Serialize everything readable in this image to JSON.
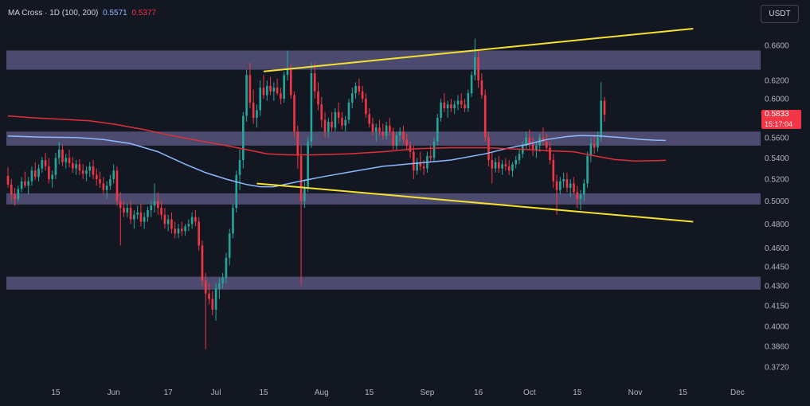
{
  "legend": {
    "title": "MA Cross · 1D (100, 200)",
    "ma100_value": "0.5571",
    "ma200_value": "0.5377"
  },
  "currency_button": "USDT",
  "last_price": {
    "value": "0.5833",
    "countdown": "15:17:04"
  },
  "colors": {
    "background": "#131722",
    "up": "#26a69a",
    "down": "#f23645",
    "ma100": "#8fb9ff",
    "ma200": "#e0303a",
    "trendline": "#f5e12e",
    "zone": "#6f6a9c"
  },
  "chart_data": {
    "type": "candlestick",
    "symbol_indicator": "MA Cross (100, 200)",
    "timeframe": "1D",
    "y_axis": {
      "scale": "log",
      "ticks": [
        "0.6600",
        "0.6200",
        "0.6000",
        "0.5600",
        "0.5400",
        "0.5200",
        "0.5000",
        "0.4800",
        "0.4600",
        "0.4450",
        "0.4300",
        "0.4150",
        "0.4000",
        "0.3860",
        "0.3720"
      ],
      "range": [
        0.362,
        0.69
      ]
    },
    "x_axis": {
      "ticks": [
        {
          "label": "15",
          "day": 14
        },
        {
          "label": "Jun",
          "day": 31
        },
        {
          "label": "17",
          "day": 47
        },
        {
          "label": "Jul",
          "day": 61
        },
        {
          "label": "15",
          "day": 75
        },
        {
          "label": "Aug",
          "day": 92
        },
        {
          "label": "15",
          "day": 106
        },
        {
          "label": "Sep",
          "day": 123
        },
        {
          "label": "16",
          "day": 138
        },
        {
          "label": "Oct",
          "day": 153
        },
        {
          "label": "15",
          "day": 167
        },
        {
          "label": "Nov",
          "day": 184
        },
        {
          "label": "15",
          "day": 198
        },
        {
          "label": "Dec",
          "day": 214
        }
      ],
      "range": [
        0,
        223
      ]
    },
    "candles_ohlc": [
      [
        0.523,
        0.531,
        0.512,
        0.515
      ],
      [
        0.515,
        0.52,
        0.5,
        0.506
      ],
      [
        0.506,
        0.512,
        0.496,
        0.502
      ],
      [
        0.502,
        0.514,
        0.5,
        0.511
      ],
      [
        0.511,
        0.522,
        0.508,
        0.518
      ],
      [
        0.518,
        0.527,
        0.512,
        0.514
      ],
      [
        0.514,
        0.522,
        0.506,
        0.518
      ],
      [
        0.518,
        0.532,
        0.514,
        0.528
      ],
      [
        0.528,
        0.536,
        0.519,
        0.522
      ],
      [
        0.522,
        0.534,
        0.518,
        0.53
      ],
      [
        0.53,
        0.541,
        0.526,
        0.538
      ],
      [
        0.538,
        0.545,
        0.528,
        0.532
      ],
      [
        0.532,
        0.54,
        0.516,
        0.52
      ],
      [
        0.52,
        0.528,
        0.512,
        0.524
      ],
      [
        0.524,
        0.545,
        0.52,
        0.54
      ],
      [
        0.54,
        0.556,
        0.534,
        0.548
      ],
      [
        0.548,
        0.553,
        0.532,
        0.536
      ],
      [
        0.536,
        0.544,
        0.53,
        0.54
      ],
      [
        0.54,
        0.548,
        0.531,
        0.535
      ],
      [
        0.535,
        0.541,
        0.526,
        0.53
      ],
      [
        0.53,
        0.538,
        0.524,
        0.534
      ],
      [
        0.534,
        0.539,
        0.524,
        0.528
      ],
      [
        0.528,
        0.534,
        0.52,
        0.525
      ],
      [
        0.525,
        0.532,
        0.518,
        0.528
      ],
      [
        0.528,
        0.536,
        0.522,
        0.532
      ],
      [
        0.532,
        0.538,
        0.52,
        0.524
      ],
      [
        0.524,
        0.53,
        0.514,
        0.52
      ],
      [
        0.52,
        0.527,
        0.512,
        0.516
      ],
      [
        0.516,
        0.522,
        0.506,
        0.51
      ],
      [
        0.51,
        0.518,
        0.502,
        0.514
      ],
      [
        0.514,
        0.524,
        0.51,
        0.52
      ],
      [
        0.52,
        0.534,
        0.516,
        0.528
      ],
      [
        0.528,
        0.532,
        0.496,
        0.5
      ],
      [
        0.5,
        0.508,
        0.462,
        0.494
      ],
      [
        0.494,
        0.5,
        0.486,
        0.49
      ],
      [
        0.49,
        0.498,
        0.486,
        0.494
      ],
      [
        0.494,
        0.5,
        0.48,
        0.484
      ],
      [
        0.484,
        0.492,
        0.476,
        0.488
      ],
      [
        0.488,
        0.496,
        0.484,
        0.49
      ],
      [
        0.49,
        0.498,
        0.478,
        0.482
      ],
      [
        0.482,
        0.49,
        0.476,
        0.486
      ],
      [
        0.486,
        0.495,
        0.482,
        0.492
      ],
      [
        0.492,
        0.5,
        0.486,
        0.496
      ],
      [
        0.496,
        0.516,
        0.49,
        0.5
      ],
      [
        0.5,
        0.508,
        0.488,
        0.494
      ],
      [
        0.494,
        0.5,
        0.484,
        0.488
      ],
      [
        0.488,
        0.494,
        0.476,
        0.48
      ],
      [
        0.48,
        0.488,
        0.474,
        0.484
      ],
      [
        0.484,
        0.49,
        0.472,
        0.476
      ],
      [
        0.476,
        0.482,
        0.468,
        0.472
      ],
      [
        0.472,
        0.48,
        0.468,
        0.476
      ],
      [
        0.476,
        0.482,
        0.47,
        0.474
      ],
      [
        0.474,
        0.48,
        0.47,
        0.478
      ],
      [
        0.478,
        0.484,
        0.474,
        0.48
      ],
      [
        0.48,
        0.49,
        0.476,
        0.486
      ],
      [
        0.486,
        0.492,
        0.478,
        0.482
      ],
      [
        0.482,
        0.486,
        0.458,
        0.462
      ],
      [
        0.462,
        0.466,
        0.43,
        0.434
      ],
      [
        0.434,
        0.44,
        0.384,
        0.424
      ],
      [
        0.424,
        0.432,
        0.416,
        0.42
      ],
      [
        0.42,
        0.426,
        0.408,
        0.412
      ],
      [
        0.412,
        0.432,
        0.404,
        0.428
      ],
      [
        0.428,
        0.436,
        0.42,
        0.432
      ],
      [
        0.432,
        0.44,
        0.428,
        0.436
      ],
      [
        0.436,
        0.456,
        0.432,
        0.452
      ],
      [
        0.452,
        0.476,
        0.446,
        0.472
      ],
      [
        0.472,
        0.498,
        0.468,
        0.494
      ],
      [
        0.494,
        0.528,
        0.49,
        0.524
      ],
      [
        0.524,
        0.548,
        0.51,
        0.538
      ],
      [
        0.538,
        0.586,
        0.53,
        0.582
      ],
      [
        0.582,
        0.632,
        0.576,
        0.626
      ],
      [
        0.626,
        0.64,
        0.59,
        0.596
      ],
      [
        0.596,
        0.61,
        0.574,
        0.58
      ],
      [
        0.58,
        0.594,
        0.57,
        0.588
      ],
      [
        0.588,
        0.62,
        0.582,
        0.612
      ],
      [
        0.612,
        0.626,
        0.6,
        0.604
      ],
      [
        0.604,
        0.62,
        0.598,
        0.614
      ],
      [
        0.614,
        0.624,
        0.604,
        0.608
      ],
      [
        0.608,
        0.618,
        0.598,
        0.612
      ],
      [
        0.612,
        0.622,
        0.604,
        0.606
      ],
      [
        0.606,
        0.612,
        0.594,
        0.6
      ],
      [
        0.6,
        0.63,
        0.596,
        0.626
      ],
      [
        0.626,
        0.654,
        0.62,
        0.632
      ],
      [
        0.632,
        0.638,
        0.6,
        0.604
      ],
      [
        0.604,
        0.608,
        0.56,
        0.566
      ],
      [
        0.566,
        0.572,
        0.53,
        0.542
      ],
      [
        0.542,
        0.552,
        0.43,
        0.5
      ],
      [
        0.5,
        0.52,
        0.494,
        0.512
      ],
      [
        0.512,
        0.56,
        0.508,
        0.556
      ],
      [
        0.556,
        0.64,
        0.55,
        0.628
      ],
      [
        0.628,
        0.64,
        0.6,
        0.608
      ],
      [
        0.608,
        0.618,
        0.588,
        0.594
      ],
      [
        0.594,
        0.602,
        0.57,
        0.578
      ],
      [
        0.578,
        0.586,
        0.56,
        0.566
      ],
      [
        0.566,
        0.58,
        0.56,
        0.576
      ],
      [
        0.576,
        0.586,
        0.566,
        0.57
      ],
      [
        0.57,
        0.59,
        0.566,
        0.586
      ],
      [
        0.586,
        0.596,
        0.574,
        0.58
      ],
      [
        0.58,
        0.586,
        0.568,
        0.572
      ],
      [
        0.572,
        0.582,
        0.566,
        0.578
      ],
      [
        0.578,
        0.6,
        0.574,
        0.596
      ],
      [
        0.596,
        0.612,
        0.59,
        0.606
      ],
      [
        0.606,
        0.618,
        0.6,
        0.614
      ],
      [
        0.614,
        0.622,
        0.604,
        0.608
      ],
      [
        0.608,
        0.614,
        0.596,
        0.6
      ],
      [
        0.6,
        0.606,
        0.58,
        0.584
      ],
      [
        0.584,
        0.59,
        0.57,
        0.574
      ],
      [
        0.574,
        0.58,
        0.562,
        0.566
      ],
      [
        0.566,
        0.574,
        0.556,
        0.57
      ],
      [
        0.57,
        0.578,
        0.562,
        0.566
      ],
      [
        0.566,
        0.574,
        0.558,
        0.562
      ],
      [
        0.562,
        0.576,
        0.558,
        0.572
      ],
      [
        0.572,
        0.58,
        0.562,
        0.566
      ],
      [
        0.566,
        0.57,
        0.548,
        0.552
      ],
      [
        0.552,
        0.566,
        0.548,
        0.562
      ],
      [
        0.562,
        0.57,
        0.556,
        0.566
      ],
      [
        0.566,
        0.572,
        0.554,
        0.558
      ],
      [
        0.558,
        0.564,
        0.548,
        0.552
      ],
      [
        0.552,
        0.556,
        0.54,
        0.546
      ],
      [
        0.546,
        0.552,
        0.52,
        0.528
      ],
      [
        0.528,
        0.54,
        0.524,
        0.536
      ],
      [
        0.536,
        0.546,
        0.528,
        0.532
      ],
      [
        0.532,
        0.538,
        0.524,
        0.53
      ],
      [
        0.53,
        0.546,
        0.526,
        0.542
      ],
      [
        0.542,
        0.552,
        0.536,
        0.54
      ],
      [
        0.54,
        0.56,
        0.536,
        0.556
      ],
      [
        0.556,
        0.584,
        0.552,
        0.58
      ],
      [
        0.58,
        0.6,
        0.576,
        0.596
      ],
      [
        0.596,
        0.606,
        0.586,
        0.59
      ],
      [
        0.59,
        0.598,
        0.58,
        0.594
      ],
      [
        0.594,
        0.6,
        0.586,
        0.59
      ],
      [
        0.59,
        0.598,
        0.584,
        0.594
      ],
      [
        0.594,
        0.604,
        0.588,
        0.598
      ],
      [
        0.598,
        0.606,
        0.59,
        0.594
      ],
      [
        0.594,
        0.6,
        0.586,
        0.59
      ],
      [
        0.59,
        0.61,
        0.586,
        0.606
      ],
      [
        0.606,
        0.63,
        0.602,
        0.626
      ],
      [
        0.626,
        0.668,
        0.62,
        0.646
      ],
      [
        0.646,
        0.654,
        0.612,
        0.62
      ],
      [
        0.62,
        0.628,
        0.6,
        0.604
      ],
      [
        0.604,
        0.61,
        0.556,
        0.56
      ],
      [
        0.56,
        0.566,
        0.532,
        0.538
      ],
      [
        0.538,
        0.546,
        0.516,
        0.53
      ],
      [
        0.53,
        0.54,
        0.526,
        0.536
      ],
      [
        0.536,
        0.542,
        0.526,
        0.53
      ],
      [
        0.53,
        0.538,
        0.524,
        0.534
      ],
      [
        0.534,
        0.54,
        0.528,
        0.532
      ],
      [
        0.532,
        0.538,
        0.524,
        0.528
      ],
      [
        0.528,
        0.536,
        0.522,
        0.534
      ],
      [
        0.534,
        0.542,
        0.53,
        0.538
      ],
      [
        0.538,
        0.548,
        0.534,
        0.544
      ],
      [
        0.544,
        0.556,
        0.54,
        0.552
      ],
      [
        0.552,
        0.566,
        0.548,
        0.56
      ],
      [
        0.56,
        0.568,
        0.548,
        0.554
      ],
      [
        0.554,
        0.56,
        0.542,
        0.548
      ],
      [
        0.548,
        0.556,
        0.54,
        0.552
      ],
      [
        0.552,
        0.564,
        0.546,
        0.56
      ],
      [
        0.56,
        0.57,
        0.552,
        0.556
      ],
      [
        0.556,
        0.564,
        0.546,
        0.55
      ],
      [
        0.55,
        0.556,
        0.534,
        0.538
      ],
      [
        0.538,
        0.544,
        0.512,
        0.518
      ],
      [
        0.518,
        0.524,
        0.488,
        0.51
      ],
      [
        0.51,
        0.522,
        0.506,
        0.518
      ],
      [
        0.518,
        0.526,
        0.512,
        0.52
      ],
      [
        0.52,
        0.526,
        0.508,
        0.512
      ],
      [
        0.512,
        0.52,
        0.504,
        0.516
      ],
      [
        0.516,
        0.522,
        0.506,
        0.508
      ],
      [
        0.508,
        0.514,
        0.494,
        0.502
      ],
      [
        0.502,
        0.51,
        0.492,
        0.506
      ],
      [
        0.506,
        0.52,
        0.5,
        0.516
      ],
      [
        0.516,
        0.546,
        0.512,
        0.542
      ],
      [
        0.542,
        0.56,
        0.536,
        0.554
      ],
      [
        0.554,
        0.562,
        0.544,
        0.55
      ],
      [
        0.55,
        0.566,
        0.546,
        0.56
      ],
      [
        0.56,
        0.618,
        0.556,
        0.598
      ],
      [
        0.598,
        0.602,
        0.576,
        0.5833
      ]
    ],
    "series": [
      {
        "name": "100",
        "label": "MA 100",
        "value": 0.5571,
        "points": [
          [
            0,
            0.5615
          ],
          [
            10,
            0.5605
          ],
          [
            20,
            0.56
          ],
          [
            28,
            0.558
          ],
          [
            36,
            0.554
          ],
          [
            44,
            0.546
          ],
          [
            52,
            0.534
          ],
          [
            58,
            0.526
          ],
          [
            64,
            0.52
          ],
          [
            70,
            0.515
          ],
          [
            74,
            0.513
          ],
          [
            78,
            0.513
          ],
          [
            84,
            0.517
          ],
          [
            92,
            0.522
          ],
          [
            100,
            0.5265
          ],
          [
            110,
            0.532
          ],
          [
            120,
            0.535
          ],
          [
            130,
            0.538
          ],
          [
            140,
            0.544
          ],
          [
            146,
            0.549
          ],
          [
            152,
            0.553
          ],
          [
            158,
            0.558
          ],
          [
            164,
            0.561
          ],
          [
            168,
            0.562
          ],
          [
            174,
            0.5615
          ],
          [
            180,
            0.56
          ],
          [
            186,
            0.558
          ],
          [
            190,
            0.5574
          ],
          [
            193,
            0.5571
          ]
        ]
      },
      {
        "name": "200",
        "label": "MA 200",
        "value": 0.5377,
        "points": [
          [
            0,
            0.582
          ],
          [
            8,
            0.58
          ],
          [
            16,
            0.5785
          ],
          [
            24,
            0.577
          ],
          [
            32,
            0.573
          ],
          [
            40,
            0.568
          ],
          [
            48,
            0.562
          ],
          [
            56,
            0.557
          ],
          [
            64,
            0.552
          ],
          [
            70,
            0.548
          ],
          [
            76,
            0.544
          ],
          [
            82,
            0.543
          ],
          [
            90,
            0.543
          ],
          [
            100,
            0.544
          ],
          [
            110,
            0.546
          ],
          [
            120,
            0.549
          ],
          [
            130,
            0.55
          ],
          [
            140,
            0.55
          ],
          [
            150,
            0.5485
          ],
          [
            158,
            0.547
          ],
          [
            166,
            0.546
          ],
          [
            172,
            0.542
          ],
          [
            178,
            0.5385
          ],
          [
            184,
            0.537
          ],
          [
            190,
            0.5374
          ],
          [
            193,
            0.5377
          ]
        ]
      }
    ],
    "zones": [
      [
        0.632,
        0.654
      ],
      [
        0.552,
        0.566
      ],
      [
        0.497,
        0.507
      ],
      [
        0.427,
        0.437
      ]
    ],
    "trendlines": [
      {
        "name": "upper-trendline",
        "points": [
          [
            75,
            0.63
          ],
          [
            201,
            0.68
          ]
        ]
      },
      {
        "name": "lower-trendline",
        "points": [
          [
            73,
            0.516
          ],
          [
            201,
            0.482
          ]
        ]
      }
    ]
  }
}
